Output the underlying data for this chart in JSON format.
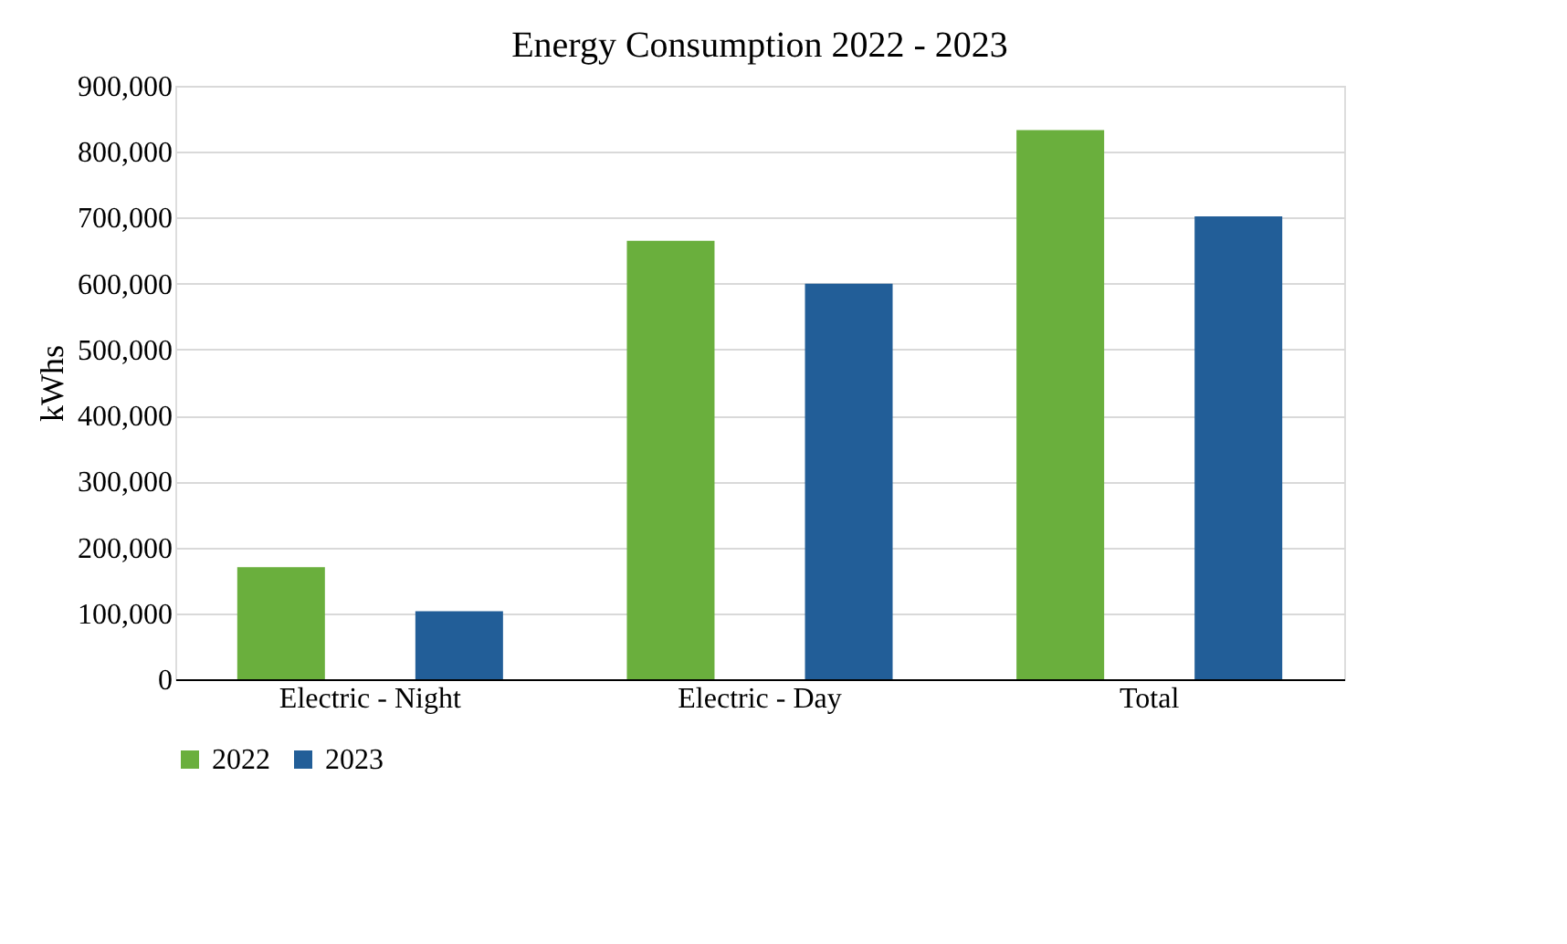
{
  "chart_data": {
    "type": "bar",
    "title": "Energy Consumption 2022 - 2023",
    "ylabel": "kWhs",
    "categories": [
      "Electric - Night",
      "Electric - Day",
      "Total"
    ],
    "series": [
      {
        "name": "2022",
        "color": "#6aaf3d",
        "values": [
          170000,
          665000,
          833000
        ]
      },
      {
        "name": "2023",
        "color": "#225e98",
        "values": [
          103000,
          600000,
          702000
        ]
      }
    ],
    "ylim": [
      0,
      900000
    ],
    "yticks": [
      {
        "value": 0,
        "label": "0"
      },
      {
        "value": 100000,
        "label": "100,000"
      },
      {
        "value": 200000,
        "label": "200,000"
      },
      {
        "value": 300000,
        "label": "300,000"
      },
      {
        "value": 400000,
        "label": "400,000"
      },
      {
        "value": 500000,
        "label": "500,000"
      },
      {
        "value": 600000,
        "label": "600,000"
      },
      {
        "value": 700000,
        "label": "700,000"
      },
      {
        "value": 800000,
        "label": "800,000"
      },
      {
        "value": 900000,
        "label": "900,000"
      }
    ],
    "grid": "y",
    "legend": "bottom"
  }
}
